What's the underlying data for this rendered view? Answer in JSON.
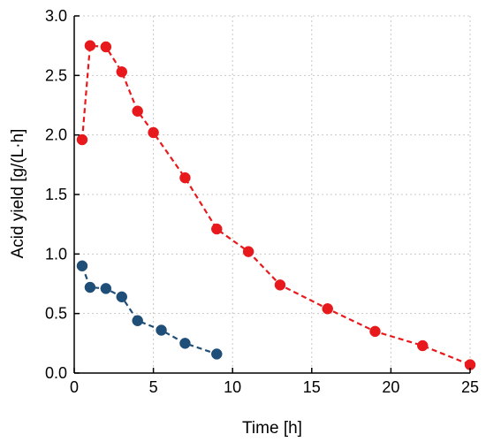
{
  "chart_data": {
    "type": "line",
    "title": "",
    "xlabel": "Time [h]",
    "ylabel": "Acid yield [g/(L·h]",
    "xlim": [
      0,
      25
    ],
    "ylim": [
      0,
      3.0
    ],
    "xticks": [
      0,
      5,
      10,
      15,
      20,
      25
    ],
    "yticks": [
      0.0,
      0.5,
      1.0,
      1.5,
      2.0,
      2.5,
      3.0
    ],
    "xtick_labels": [
      "0",
      "5",
      "10",
      "15",
      "20",
      "25"
    ],
    "ytick_labels": [
      "0.0",
      "0.5",
      "1.0",
      "1.5",
      "2.0",
      "2.5",
      "3.0"
    ],
    "grid": true,
    "legend": "none",
    "series": [
      {
        "color": "#e8191c",
        "line_style": "dashed",
        "marker": "circle",
        "x": [
          0.5,
          1,
          2,
          3,
          4,
          5,
          7,
          9,
          11,
          13,
          16,
          19,
          22,
          25
        ],
        "y": [
          1.96,
          2.75,
          2.74,
          2.53,
          2.2,
          2.02,
          1.64,
          1.21,
          1.02,
          0.74,
          0.54,
          0.35,
          0.23,
          0.07
        ]
      },
      {
        "color": "#1f4e79",
        "line_style": "dashed",
        "marker": "circle",
        "x": [
          0.5,
          1,
          2,
          3,
          4,
          5.5,
          7,
          9
        ],
        "y": [
          0.9,
          0.72,
          0.71,
          0.64,
          0.44,
          0.36,
          0.25,
          0.16
        ]
      }
    ]
  }
}
